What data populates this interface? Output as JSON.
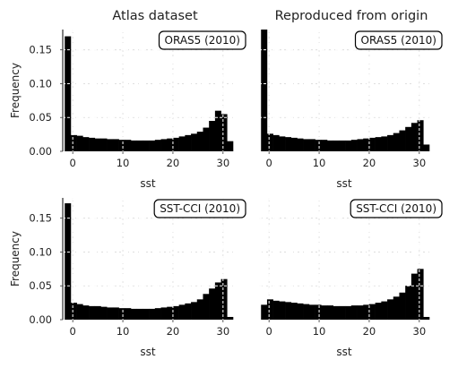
{
  "chart_data": [
    {
      "type": "bar",
      "panel": "top-left",
      "column_title": "Atlas dataset",
      "annotation": "ORAS5 (2010)",
      "xlabel": "sst",
      "ylabel": "Frequency",
      "xlim": [
        -2,
        32
      ],
      "ylim": [
        0,
        0.18
      ],
      "xticks": [
        "0",
        "10",
        "20",
        "30"
      ],
      "yticks": [
        "0.00",
        "0.05",
        "0.10",
        "0.15"
      ],
      "x": [
        -1.6,
        -0.4,
        0.8,
        2.0,
        3.2,
        4.4,
        5.6,
        6.8,
        8.0,
        9.2,
        10.4,
        11.6,
        12.8,
        14.0,
        15.2,
        16.4,
        17.6,
        18.8,
        20.0,
        21.2,
        22.4,
        23.6,
        24.8,
        26.0,
        27.2,
        28.4,
        29.6,
        30.8
      ],
      "values": [
        0.17,
        0.024,
        0.023,
        0.021,
        0.02,
        0.019,
        0.019,
        0.018,
        0.018,
        0.017,
        0.017,
        0.016,
        0.016,
        0.016,
        0.016,
        0.017,
        0.018,
        0.019,
        0.02,
        0.022,
        0.024,
        0.026,
        0.029,
        0.035,
        0.045,
        0.06,
        0.055,
        0.015
      ]
    },
    {
      "type": "bar",
      "panel": "top-right",
      "column_title": "Reproduced from origin",
      "annotation": "ORAS5 (2010)",
      "xlabel": "sst",
      "ylabel": "",
      "xlim": [
        -2,
        32
      ],
      "ylim": [
        0,
        0.18
      ],
      "xticks": [
        "0",
        "10",
        "20",
        "30"
      ],
      "yticks": [],
      "x": [
        -1.6,
        -0.4,
        0.8,
        2.0,
        3.2,
        4.4,
        5.6,
        6.8,
        8.0,
        9.2,
        10.4,
        11.6,
        12.8,
        14.0,
        15.2,
        16.4,
        17.6,
        18.8,
        20.0,
        21.2,
        22.4,
        23.6,
        24.8,
        26.0,
        27.2,
        28.4,
        29.6,
        30.8
      ],
      "values": [
        0.18,
        0.026,
        0.024,
        0.022,
        0.021,
        0.02,
        0.019,
        0.018,
        0.018,
        0.017,
        0.017,
        0.016,
        0.016,
        0.016,
        0.016,
        0.017,
        0.018,
        0.019,
        0.02,
        0.021,
        0.022,
        0.024,
        0.027,
        0.031,
        0.036,
        0.042,
        0.046,
        0.01
      ]
    },
    {
      "type": "bar",
      "panel": "bottom-left",
      "column_title": "",
      "annotation": "SST-CCI (2010)",
      "xlabel": "sst",
      "ylabel": "Frequency",
      "xlim": [
        -2,
        32
      ],
      "ylim": [
        0,
        0.18
      ],
      "xticks": [
        "0",
        "10",
        "20",
        "30"
      ],
      "yticks": [
        "0.00",
        "0.05",
        "0.10",
        "0.15"
      ],
      "x": [
        -1.6,
        -0.4,
        0.8,
        2.0,
        3.2,
        4.4,
        5.6,
        6.8,
        8.0,
        9.2,
        10.4,
        11.6,
        12.8,
        14.0,
        15.2,
        16.4,
        17.6,
        18.8,
        20.0,
        21.2,
        22.4,
        23.6,
        24.8,
        26.0,
        27.2,
        28.4,
        29.6,
        30.8
      ],
      "values": [
        0.172,
        0.025,
        0.023,
        0.021,
        0.02,
        0.02,
        0.019,
        0.018,
        0.018,
        0.017,
        0.017,
        0.016,
        0.016,
        0.016,
        0.016,
        0.017,
        0.018,
        0.019,
        0.02,
        0.022,
        0.024,
        0.026,
        0.03,
        0.038,
        0.046,
        0.055,
        0.06,
        0.004
      ]
    },
    {
      "type": "bar",
      "panel": "bottom-right",
      "column_title": "",
      "annotation": "SST-CCI (2010)",
      "xlabel": "sst",
      "ylabel": "",
      "xlim": [
        -2,
        32
      ],
      "ylim": [
        0,
        0.18
      ],
      "xticks": [
        "0",
        "10",
        "20",
        "30"
      ],
      "yticks": [],
      "x": [
        -1.6,
        -0.4,
        0.8,
        2.0,
        3.2,
        4.4,
        5.6,
        6.8,
        8.0,
        9.2,
        10.4,
        11.6,
        12.8,
        14.0,
        15.2,
        16.4,
        17.6,
        18.8,
        20.0,
        21.2,
        22.4,
        23.6,
        24.8,
        26.0,
        27.2,
        28.4,
        29.6,
        30.8
      ],
      "values": [
        0.022,
        0.03,
        0.028,
        0.027,
        0.026,
        0.025,
        0.024,
        0.023,
        0.022,
        0.022,
        0.021,
        0.021,
        0.02,
        0.02,
        0.02,
        0.021,
        0.021,
        0.022,
        0.023,
        0.025,
        0.027,
        0.03,
        0.034,
        0.04,
        0.05,
        0.068,
        0.075,
        0.004
      ]
    }
  ]
}
